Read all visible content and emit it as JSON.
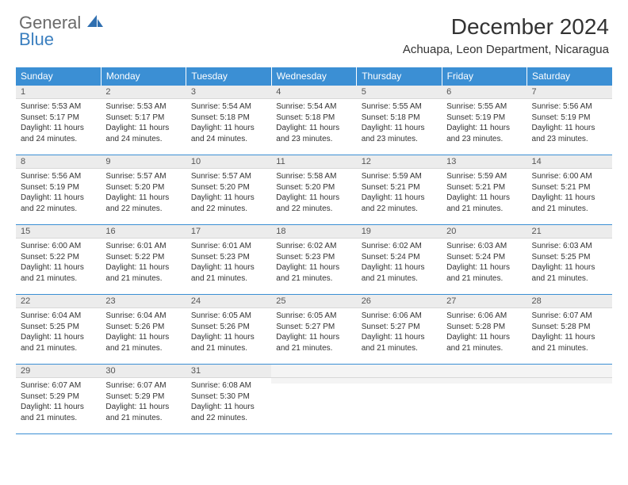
{
  "brand": {
    "general": "General",
    "blue": "Blue"
  },
  "title": "December 2024",
  "location": "Achuapa, Leon Department, Nicaragua",
  "theme": {
    "header_bg": "#3b8fd4",
    "header_text": "#ffffff",
    "daynum_bg": "#ececec",
    "border": "#3b8fd4",
    "logo_gray": "#6a6a6a",
    "logo_blue": "#3b7fbf"
  },
  "weekdays": [
    "Sunday",
    "Monday",
    "Tuesday",
    "Wednesday",
    "Thursday",
    "Friday",
    "Saturday"
  ],
  "days": [
    {
      "n": 1,
      "sunrise": "5:53 AM",
      "sunset": "5:17 PM",
      "daylight": "11 hours and 24 minutes."
    },
    {
      "n": 2,
      "sunrise": "5:53 AM",
      "sunset": "5:17 PM",
      "daylight": "11 hours and 24 minutes."
    },
    {
      "n": 3,
      "sunrise": "5:54 AM",
      "sunset": "5:18 PM",
      "daylight": "11 hours and 24 minutes."
    },
    {
      "n": 4,
      "sunrise": "5:54 AM",
      "sunset": "5:18 PM",
      "daylight": "11 hours and 23 minutes."
    },
    {
      "n": 5,
      "sunrise": "5:55 AM",
      "sunset": "5:18 PM",
      "daylight": "11 hours and 23 minutes."
    },
    {
      "n": 6,
      "sunrise": "5:55 AM",
      "sunset": "5:19 PM",
      "daylight": "11 hours and 23 minutes."
    },
    {
      "n": 7,
      "sunrise": "5:56 AM",
      "sunset": "5:19 PM",
      "daylight": "11 hours and 23 minutes."
    },
    {
      "n": 8,
      "sunrise": "5:56 AM",
      "sunset": "5:19 PM",
      "daylight": "11 hours and 22 minutes."
    },
    {
      "n": 9,
      "sunrise": "5:57 AM",
      "sunset": "5:20 PM",
      "daylight": "11 hours and 22 minutes."
    },
    {
      "n": 10,
      "sunrise": "5:57 AM",
      "sunset": "5:20 PM",
      "daylight": "11 hours and 22 minutes."
    },
    {
      "n": 11,
      "sunrise": "5:58 AM",
      "sunset": "5:20 PM",
      "daylight": "11 hours and 22 minutes."
    },
    {
      "n": 12,
      "sunrise": "5:59 AM",
      "sunset": "5:21 PM",
      "daylight": "11 hours and 22 minutes."
    },
    {
      "n": 13,
      "sunrise": "5:59 AM",
      "sunset": "5:21 PM",
      "daylight": "11 hours and 21 minutes."
    },
    {
      "n": 14,
      "sunrise": "6:00 AM",
      "sunset": "5:21 PM",
      "daylight": "11 hours and 21 minutes."
    },
    {
      "n": 15,
      "sunrise": "6:00 AM",
      "sunset": "5:22 PM",
      "daylight": "11 hours and 21 minutes."
    },
    {
      "n": 16,
      "sunrise": "6:01 AM",
      "sunset": "5:22 PM",
      "daylight": "11 hours and 21 minutes."
    },
    {
      "n": 17,
      "sunrise": "6:01 AM",
      "sunset": "5:23 PM",
      "daylight": "11 hours and 21 minutes."
    },
    {
      "n": 18,
      "sunrise": "6:02 AM",
      "sunset": "5:23 PM",
      "daylight": "11 hours and 21 minutes."
    },
    {
      "n": 19,
      "sunrise": "6:02 AM",
      "sunset": "5:24 PM",
      "daylight": "11 hours and 21 minutes."
    },
    {
      "n": 20,
      "sunrise": "6:03 AM",
      "sunset": "5:24 PM",
      "daylight": "11 hours and 21 minutes."
    },
    {
      "n": 21,
      "sunrise": "6:03 AM",
      "sunset": "5:25 PM",
      "daylight": "11 hours and 21 minutes."
    },
    {
      "n": 22,
      "sunrise": "6:04 AM",
      "sunset": "5:25 PM",
      "daylight": "11 hours and 21 minutes."
    },
    {
      "n": 23,
      "sunrise": "6:04 AM",
      "sunset": "5:26 PM",
      "daylight": "11 hours and 21 minutes."
    },
    {
      "n": 24,
      "sunrise": "6:05 AM",
      "sunset": "5:26 PM",
      "daylight": "11 hours and 21 minutes."
    },
    {
      "n": 25,
      "sunrise": "6:05 AM",
      "sunset": "5:27 PM",
      "daylight": "11 hours and 21 minutes."
    },
    {
      "n": 26,
      "sunrise": "6:06 AM",
      "sunset": "5:27 PM",
      "daylight": "11 hours and 21 minutes."
    },
    {
      "n": 27,
      "sunrise": "6:06 AM",
      "sunset": "5:28 PM",
      "daylight": "11 hours and 21 minutes."
    },
    {
      "n": 28,
      "sunrise": "6:07 AM",
      "sunset": "5:28 PM",
      "daylight": "11 hours and 21 minutes."
    },
    {
      "n": 29,
      "sunrise": "6:07 AM",
      "sunset": "5:29 PM",
      "daylight": "11 hours and 21 minutes."
    },
    {
      "n": 30,
      "sunrise": "6:07 AM",
      "sunset": "5:29 PM",
      "daylight": "11 hours and 21 minutes."
    },
    {
      "n": 31,
      "sunrise": "6:08 AM",
      "sunset": "5:30 PM",
      "daylight": "11 hours and 22 minutes."
    }
  ],
  "labels": {
    "sunrise": "Sunrise:",
    "sunset": "Sunset:",
    "daylight": "Daylight:"
  },
  "layout": {
    "start_weekday": 0,
    "total_days": 31,
    "columns": 7
  }
}
